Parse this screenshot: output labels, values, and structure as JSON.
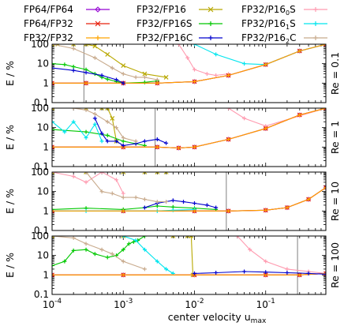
{
  "chart_data": {
    "type": "line",
    "title": "",
    "xlabel": "center velocity u_max",
    "xlabel_base": "center velocity u",
    "xlabel_sub": "max",
    "ylabel": "E / %",
    "xscale": "log",
    "yscale": "log",
    "xlim": [
      0.0001,
      0.7
    ],
    "ylim": [
      0.1,
      100
    ],
    "x_ticks": [
      {
        "value": 0.0001,
        "base": "10",
        "exp": "-4"
      },
      {
        "value": 0.001,
        "base": "10",
        "exp": "-3"
      },
      {
        "value": 0.01,
        "base": "10",
        "exp": "-2"
      },
      {
        "value": 0.1,
        "base": "10",
        "exp": "-1"
      }
    ],
    "y_ticks": [
      {
        "value": 0.1,
        "label": "0.1"
      },
      {
        "value": 1,
        "label": "1"
      },
      {
        "value": 10,
        "label": "10"
      },
      {
        "value": 100,
        "label": "100"
      }
    ],
    "legend_placement": "top",
    "legend": [
      {
        "label": "FP64/FP64",
        "color": "#9400d3",
        "marker": "diamond"
      },
      {
        "label": "FP32/FP16",
        "color": "#b8a800",
        "marker": "x"
      },
      {
        "label": "FP32/P16",
        "sub": "0",
        "suffix": "S",
        "color": "#ff9bb0",
        "marker": "plus"
      },
      {
        "label": "FP64/FP32",
        "color": "#e8200c",
        "marker": "x"
      },
      {
        "label": "FP32/FP16S",
        "color": "#00c800",
        "marker": "plus"
      },
      {
        "label": "FP32/P16",
        "sub": "1",
        "suffix": "S",
        "color": "#00e5ee",
        "marker": "plus"
      },
      {
        "label": "FP32/FP32",
        "color": "#ffa500",
        "marker": "plus"
      },
      {
        "label": "FP32/FP16C",
        "color": "#0000cd",
        "marker": "plus"
      },
      {
        "label": "FP32/P16",
        "sub": "2",
        "suffix": "C",
        "color": "#c8aa8c",
        "marker": "plus"
      }
    ],
    "panels": [
      {
        "label": "Re = 0.1",
        "vline": 0.00028,
        "series": [
          {
            "name": "FP64/FP64",
            "x": [
              0.0001,
              0.0003,
              0.001,
              0.003,
              0.01,
              0.03,
              0.1,
              0.3,
              0.7
            ],
            "y": [
              1.0,
              1.0,
              1.0,
              1.0,
              1.2,
              2.5,
              9,
              45,
              100
            ]
          },
          {
            "name": "FP32/FP16",
            "x": [
              0.0001,
              0.00012,
              0.0002,
              0.0003,
              0.0004,
              0.0006,
              0.001,
              0.002,
              0.004
            ],
            "y": [
              100,
              100,
              100,
              100,
              80,
              30,
              8,
              3,
              2
            ]
          },
          {
            "name": "FP32/P16_0S",
            "x": [
              0.006,
              0.008,
              0.01,
              0.015,
              0.02,
              0.03
            ],
            "y": [
              100,
              20,
              5,
              3,
              2.5,
              3
            ]
          },
          {
            "name": "FP64/FP32",
            "x": [
              0.0001,
              0.0003,
              0.001,
              0.003,
              0.01,
              0.03,
              0.1,
              0.3,
              0.7
            ],
            "y": [
              1.0,
              1.0,
              1.0,
              1.0,
              1.2,
              2.5,
              9,
              45,
              100
            ]
          },
          {
            "name": "FP32/FP16S",
            "x": [
              0.0001,
              0.00015,
              0.0002,
              0.0003,
              0.0004,
              0.0005,
              0.0006,
              0.0008,
              0.001,
              0.002,
              0.003
            ],
            "y": [
              10,
              9,
              7,
              5,
              3,
              2,
              1.6,
              1.2,
              1.0,
              1.1,
              1.3
            ]
          },
          {
            "name": "FP32/P16_1S",
            "x": [
              0.01,
              0.02,
              0.05,
              0.1,
              0.3,
              0.7
            ],
            "y": [
              100,
              30,
              10,
              9,
              45,
              100
            ]
          },
          {
            "name": "FP32/FP32",
            "x": [
              0.0001,
              0.0003,
              0.001,
              0.003,
              0.01,
              0.03,
              0.1,
              0.3,
              0.7
            ],
            "y": [
              1.0,
              1.0,
              1.0,
              1.0,
              1.2,
              2.5,
              9,
              45,
              100
            ]
          },
          {
            "name": "FP32/FP16C",
            "x": [
              0.0001,
              0.0002,
              0.0003,
              0.0005,
              0.0008,
              0.001
            ],
            "y": [
              6,
              4.5,
              3.5,
              2.5,
              1.5,
              1.0
            ]
          },
          {
            "name": "FP32/P16_2C",
            "x": [
              0.0001,
              0.0002,
              0.0004,
              0.0007,
              0.001,
              0.0015,
              0.002,
              0.003
            ],
            "y": [
              100,
              60,
              20,
              6,
              3,
              2,
              2,
              1.5
            ]
          }
        ]
      },
      {
        "label": "Re = 1",
        "vline": 0.0028,
        "series": [
          {
            "name": "FP64/FP64",
            "x": [
              0.0001,
              0.001,
              0.003,
              0.006,
              0.01,
              0.03,
              0.1,
              0.3,
              0.7
            ],
            "y": [
              1.0,
              1.0,
              1.0,
              0.9,
              1.0,
              2.5,
              9,
              45,
              100
            ]
          },
          {
            "name": "FP32/FP16",
            "x": [
              0.0001,
              0.0003,
              0.0005,
              0.0006,
              0.0007,
              0.0008
            ],
            "y": [
              100,
              100,
              100,
              100,
              30,
              2
            ]
          },
          {
            "name": "FP32/P16_0S",
            "x": [
              0.03,
              0.05,
              0.1,
              0.3,
              0.7
            ],
            "y": [
              100,
              30,
              12,
              40,
              100
            ]
          },
          {
            "name": "FP64/FP32",
            "x": [
              0.0001,
              0.001,
              0.003,
              0.006,
              0.01,
              0.03,
              0.1,
              0.3,
              0.7
            ],
            "y": [
              1.0,
              1.0,
              1.0,
              0.9,
              1.0,
              2.5,
              9,
              45,
              100
            ]
          },
          {
            "name": "FP32/FP16S",
            "x": [
              0.0001,
              0.0003,
              0.0006,
              0.001,
              0.0015,
              0.002
            ],
            "y": [
              8,
              6,
              4,
              2,
              1.5,
              1.2
            ]
          },
          {
            "name": "FP32/P16_1S",
            "x": [
              0.0001,
              0.00015,
              0.0002,
              0.0003,
              0.0004,
              0.0005
            ],
            "y": [
              20,
              6,
              20,
              3,
              15,
              2
            ]
          },
          {
            "name": "FP32/FP32",
            "x": [
              0.0001,
              0.001,
              0.003,
              0.006,
              0.01,
              0.03,
              0.1,
              0.3,
              0.7
            ],
            "y": [
              1.0,
              1.0,
              1.0,
              0.9,
              1.0,
              2.5,
              9,
              45,
              100
            ]
          },
          {
            "name": "FP32/FP16C",
            "x": [
              0.0004,
              0.0005,
              0.0006,
              0.0008,
              0.001,
              0.0015,
              0.002,
              0.003,
              0.004
            ],
            "y": [
              30,
              5,
              2,
              2,
              1.2,
              1.5,
              2,
              2.5,
              1.6
            ]
          },
          {
            "name": "FP32/P16_2C",
            "x": [
              0.0001,
              0.0002,
              0.0003,
              0.0004,
              0.0006,
              0.0008,
              0.001,
              0.0015
            ],
            "y": [
              100,
              100,
              80,
              50,
              20,
              10,
              3,
              2
            ]
          }
        ]
      },
      {
        "label": "Re = 10",
        "vline": 0.028,
        "series": [
          {
            "name": "FP64/FP64",
            "x": [
              0.0001,
              0.001,
              0.01,
              0.03,
              0.1,
              0.2,
              0.4,
              0.7
            ],
            "y": [
              1.0,
              1.0,
              1.0,
              1.0,
              1.1,
              1.5,
              4,
              16
            ]
          },
          {
            "name": "FP32/FP16",
            "x": [
              0.0001,
              0.0003,
              0.001,
              0.002,
              0.003,
              0.004
            ],
            "y": [
              100,
              100,
              100,
              100,
              100,
              100
            ]
          },
          {
            "name": "FP32/P16_0S",
            "x": [
              0.0001,
              0.0002,
              0.0003,
              0.0005,
              0.0008,
              0.001
            ],
            "y": [
              100,
              60,
              30,
              100,
              40,
              8
            ]
          },
          {
            "name": "FP64/FP32",
            "x": [
              0.0001,
              0.001,
              0.01,
              0.03,
              0.1,
              0.2,
              0.4,
              0.7
            ],
            "y": [
              1.0,
              1.0,
              1.0,
              1.0,
              1.1,
              1.5,
              4,
              16
            ]
          },
          {
            "name": "FP32/FP16S",
            "x": [
              0.0001,
              0.0003,
              0.001,
              0.002,
              0.003,
              0.005,
              0.01,
              0.02
            ],
            "y": [
              1.2,
              1.4,
              1.2,
              1.5,
              1.8,
              1.6,
              1.4,
              1.2
            ]
          },
          {
            "name": "FP32/P16_1S",
            "x": [
              0.0001,
              0.0003,
              0.001,
              0.003,
              0.005,
              0.01
            ],
            "y": [
              1.0,
              1.0,
              1.0,
              1.0,
              1.1,
              1.2
            ]
          },
          {
            "name": "FP32/FP32",
            "x": [
              0.0001,
              0.001,
              0.01,
              0.03,
              0.1,
              0.2,
              0.4,
              0.7
            ],
            "y": [
              1.0,
              1.0,
              1.0,
              1.0,
              1.1,
              1.5,
              4,
              16
            ]
          },
          {
            "name": "FP32/FP16C",
            "x": [
              0.002,
              0.003,
              0.005,
              0.007,
              0.01,
              0.015,
              0.02
            ],
            "y": [
              1.5,
              2.5,
              3.5,
              3,
              2.5,
              2,
              1.5
            ]
          },
          {
            "name": "FP32/P16_2C",
            "x": [
              0.0003,
              0.0005,
              0.0007,
              0.001,
              0.0015,
              0.002,
              0.003,
              0.004
            ],
            "y": [
              100,
              10,
              8,
              5,
              5,
              4,
              3,
              3
            ]
          }
        ]
      },
      {
        "label": "Re = 100",
        "vline": 0.28,
        "series": [
          {
            "name": "FP64/FP64",
            "x": [
              0.0001,
              0.001,
              0.01,
              0.1,
              0.3,
              0.7
            ],
            "y": [
              1.0,
              1.0,
              1.0,
              1.0,
              1.0,
              1.2
            ]
          },
          {
            "name": "FP32/FP16",
            "x": [
              0.0001,
              0.001,
              0.005,
              0.008,
              0.009,
              0.0095
            ],
            "y": [
              100,
              100,
              100,
              100,
              100,
              1.0
            ]
          },
          {
            "name": "FP32/P16_0S",
            "x": [
              0.04,
              0.06,
              0.1,
              0.2,
              0.4,
              0.7
            ],
            "y": [
              100,
              20,
              5,
              2,
              1.5,
              1.2
            ]
          },
          {
            "name": "FP64/FP32",
            "x": [
              0.0001,
              0.001,
              0.01,
              0.1,
              0.3,
              0.7
            ],
            "y": [
              1.0,
              1.0,
              1.0,
              1.0,
              1.0,
              1.2
            ]
          },
          {
            "name": "FP32/FP16S",
            "x": [
              0.0001,
              0.00015,
              0.0002,
              0.0003,
              0.0004,
              0.0006,
              0.0008,
              0.001,
              0.0012,
              0.0014,
              0.0016,
              0.002
            ],
            "y": [
              3,
              5,
              18,
              20,
              12,
              8,
              10,
              20,
              40,
              50,
              60,
              100
            ]
          },
          {
            "name": "FP32/P16_1S",
            "x": [
              0.001,
              0.0015,
              0.002,
              0.003,
              0.004,
              0.005
            ],
            "y": [
              100,
              60,
              20,
              5,
              2,
              1.2
            ]
          },
          {
            "name": "FP32/FP32",
            "x": [
              0.0001,
              0.001,
              0.01,
              0.1,
              0.3,
              0.7
            ],
            "y": [
              1.0,
              1.0,
              1.0,
              1.0,
              1.0,
              1.2
            ]
          },
          {
            "name": "FP32/FP16C",
            "x": [
              0.01,
              0.02,
              0.05,
              0.1,
              0.2,
              0.4,
              0.7
            ],
            "y": [
              1.2,
              1.3,
              1.5,
              1.4,
              1.3,
              1.2,
              1.1
            ]
          },
          {
            "name": "FP32/P16_2C",
            "x": [
              0.0001,
              0.0002,
              0.0003,
              0.0005,
              0.0007,
              0.001,
              0.002
            ],
            "y": [
              100,
              80,
              40,
              20,
              12,
              5,
              2
            ]
          }
        ]
      }
    ]
  }
}
